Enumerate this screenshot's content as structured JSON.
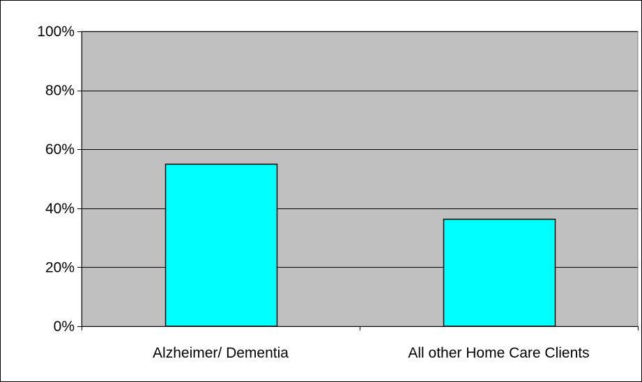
{
  "chart_data": {
    "type": "bar",
    "categories": [
      "Alzheimer/ Dementia",
      "All other Home Care Clients"
    ],
    "values": [
      55,
      36.5
    ],
    "ylim": [
      0,
      100
    ],
    "yticks": [
      {
        "value": 0,
        "label": "0%"
      },
      {
        "value": 20,
        "label": "20%"
      },
      {
        "value": 40,
        "label": "40%"
      },
      {
        "value": 60,
        "label": "60%"
      },
      {
        "value": 80,
        "label": "80%"
      },
      {
        "value": 100,
        "label": "100%"
      }
    ],
    "grid": true,
    "legend": "none",
    "colors": {
      "bar_fill": "#00FFFF",
      "bar_stroke": "#000000",
      "plot_background": "#C0C0C0",
      "gridline": "#000000"
    }
  }
}
